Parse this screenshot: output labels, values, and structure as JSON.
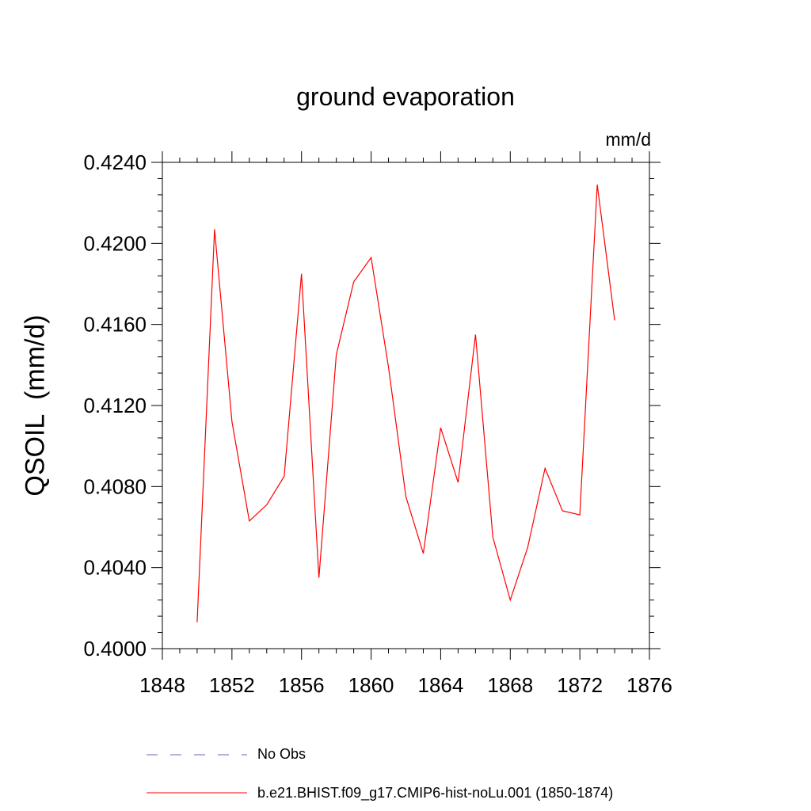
{
  "chart_data": {
    "type": "line",
    "title": "ground evaporation",
    "units": "mm/d",
    "ylabel": "QSOIL  (mm/d)",
    "xlim": [
      1848,
      1876
    ],
    "ylim": [
      0.4,
      0.424
    ],
    "xticks": [
      "1848",
      "1852",
      "1856",
      "1860",
      "1864",
      "1868",
      "1872",
      "1876"
    ],
    "yticks": [
      "0.4000",
      "0.4040",
      "0.4080",
      "0.4120",
      "0.4160",
      "0.4200",
      "0.4240"
    ],
    "series": [
      {
        "name": "No Obs",
        "style": "dashed",
        "color": "#6a6ab4",
        "x": [],
        "y": []
      },
      {
        "name": "b.e21.BHIST.f09_g17.CMIP6-hist-noLu.001 (1850-1874)",
        "style": "solid",
        "color": "#ff0000",
        "x": [
          1850,
          1851,
          1852,
          1853,
          1854,
          1855,
          1856,
          1857,
          1858,
          1859,
          1860,
          1861,
          1862,
          1863,
          1864,
          1865,
          1866,
          1867,
          1868,
          1869,
          1870,
          1871,
          1872,
          1873,
          1874
        ],
        "y": [
          0.4013,
          0.4207,
          0.4112,
          0.4063,
          0.4071,
          0.4085,
          0.4185,
          0.4035,
          0.4145,
          0.4181,
          0.4193,
          0.4139,
          0.4075,
          0.4047,
          0.4109,
          0.4082,
          0.4155,
          0.4055,
          0.4024,
          0.405,
          0.4089,
          0.4068,
          0.4066,
          0.4229,
          0.4162
        ]
      }
    ],
    "grid": false,
    "legend_position": "bottom"
  }
}
